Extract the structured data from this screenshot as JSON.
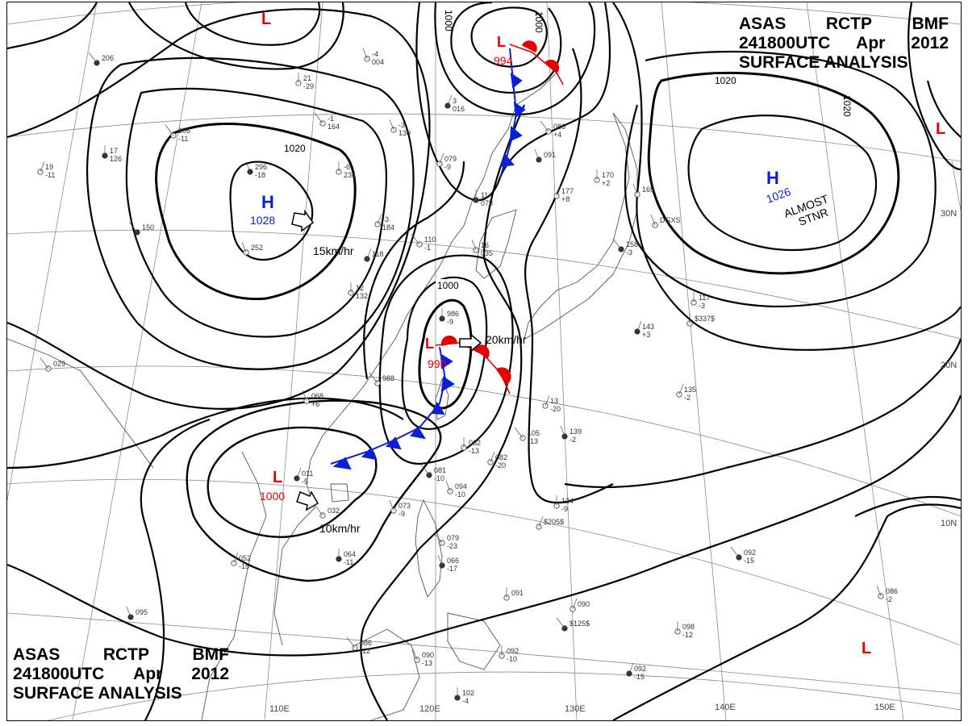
{
  "header": {
    "agency": "ASAS",
    "station": "RCTP",
    "office": "BMF",
    "datetime": "241800UTC",
    "month": "Apr",
    "year": "2012",
    "subtitle": "SURFACE ANALYSIS"
  },
  "colors": {
    "high": "#0a1fd6",
    "low": "#e40000",
    "isobar": "#000000",
    "graticule": "#8a8a8a",
    "coast": "#555555",
    "station": "#333333"
  },
  "lon_labels": [
    "110E",
    "120E",
    "130E",
    "140E",
    "150E"
  ],
  "lat_labels": [
    "30N",
    "20N",
    "10N"
  ],
  "pressure_centers": [
    {
      "type": "H",
      "value": "1028"
    },
    {
      "type": "H",
      "value": "1026",
      "note_line1": "ALMOST",
      "note_line2": "STNR"
    },
    {
      "type": "L",
      "value": "994"
    },
    {
      "type": "L",
      "value": "996"
    },
    {
      "type": "L",
      "value": "1000"
    },
    {
      "type": "L",
      "value": ""
    },
    {
      "type": "L",
      "value": ""
    },
    {
      "type": "L",
      "value": ""
    }
  ],
  "movements": [
    {
      "speed": "15km/hr"
    },
    {
      "speed": "20km/hr"
    },
    {
      "speed": "10km/hr"
    }
  ],
  "isobar_labels": [
    "1020",
    "1000",
    "1000",
    "1000",
    "1020",
    "1020"
  ],
  "stations": [
    {
      "t": "206",
      "p": ""
    },
    {
      "t": "-4",
      "p": "004"
    },
    {
      "t": "21",
      "p": "-29"
    },
    {
      "t": "3",
      "p": "016"
    },
    {
      "t": "-1",
      "p": "164"
    },
    {
      "t": "-3",
      "p": "130"
    },
    {
      "t": "17",
      "p": "126"
    },
    {
      "t": "19",
      "p": "-11"
    },
    {
      "t": "206",
      "p": "-11"
    },
    {
      "t": "296",
      "p": "-18"
    },
    {
      "t": "-6",
      "p": "234"
    },
    {
      "t": "-3",
      "p": "184"
    },
    {
      "t": "150",
      "p": ""
    },
    {
      "t": "252",
      "p": ""
    },
    {
      "t": "12",
      "p": "132"
    },
    {
      "t": "118",
      "p": ""
    },
    {
      "t": "110",
      "p": "-1"
    },
    {
      "t": "16",
      "p": "035"
    },
    {
      "t": "11",
      "p": "078"
    },
    {
      "t": "079",
      "p": "-9"
    },
    {
      "t": "086",
      "p": "+4"
    },
    {
      "t": "091",
      "p": ""
    },
    {
      "t": "170",
      "p": "+2"
    },
    {
      "t": "177",
      "p": "+8"
    },
    {
      "t": "158",
      "p": "-3"
    },
    {
      "t": "165",
      "p": ""
    },
    {
      "t": "117",
      "p": "-3"
    },
    {
      "t": "143",
      "p": "+3"
    },
    {
      "t": "988",
      "p": ""
    },
    {
      "t": "068",
      "p": "+6"
    },
    {
      "t": "986",
      "p": "-9"
    },
    {
      "t": "13",
      "p": "-20"
    },
    {
      "t": "105",
      "p": "-13"
    },
    {
      "t": "139",
      "p": "-2"
    },
    {
      "t": "062",
      "p": "-13"
    },
    {
      "t": "082",
      "p": "-20"
    },
    {
      "t": "081",
      "p": "-10"
    },
    {
      "t": "094",
      "p": "-10"
    },
    {
      "t": "124",
      "p": "-9"
    },
    {
      "t": "011",
      "p": "-5"
    },
    {
      "t": "032",
      "p": ""
    },
    {
      "t": "073",
      "p": "-9"
    },
    {
      "t": "064",
      "p": "-11"
    },
    {
      "t": "052",
      "p": "-15"
    },
    {
      "t": "079",
      "p": "-23"
    },
    {
      "t": "066",
      "p": "-17"
    },
    {
      "t": "091",
      "p": ""
    },
    {
      "t": "090",
      "p": ""
    },
    {
      "t": "092",
      "p": "-15"
    },
    {
      "t": "086",
      "p": "-2"
    },
    {
      "t": "098",
      "p": "-12"
    },
    {
      "t": "092",
      "p": "-15"
    },
    {
      "t": "086",
      "p": "-12"
    },
    {
      "t": "090",
      "p": "-13"
    },
    {
      "t": "102",
      "p": "-4"
    },
    {
      "t": "135",
      "p": "-2"
    },
    {
      "t": "029",
      "p": ""
    },
    {
      "t": "095",
      "p": ""
    },
    {
      "t": "$337$",
      "p": ""
    },
    {
      "t": "$205$",
      "p": ""
    },
    {
      "t": "$125$",
      "p": ""
    },
    {
      "t": "DGXS",
      "p": ""
    },
    {
      "t": "092",
      "p": "-10"
    }
  ]
}
